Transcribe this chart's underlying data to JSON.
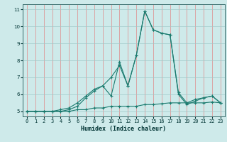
{
  "xlabel": "Humidex (Indice chaleur)",
  "x": [
    0,
    1,
    2,
    3,
    4,
    5,
    6,
    7,
    8,
    9,
    10,
    11,
    12,
    13,
    14,
    15,
    16,
    17,
    18,
    19,
    20,
    21,
    22,
    23
  ],
  "line1": [
    5.0,
    5.0,
    5.0,
    5.0,
    5.0,
    5.1,
    5.3,
    5.8,
    6.2,
    6.5,
    7.0,
    7.7,
    6.5,
    8.3,
    10.9,
    9.8,
    9.6,
    9.5,
    6.1,
    5.5,
    5.7,
    5.8,
    5.9,
    5.5
  ],
  "line2": [
    5.0,
    5.0,
    5.0,
    5.0,
    5.1,
    5.2,
    5.5,
    5.9,
    6.3,
    6.5,
    5.9,
    7.9,
    6.5,
    8.3,
    10.9,
    9.8,
    9.6,
    9.5,
    6.0,
    5.4,
    5.6,
    5.8,
    5.9,
    5.5
  ],
  "line3": [
    5.0,
    5.0,
    5.0,
    5.0,
    5.0,
    5.0,
    5.1,
    5.1,
    5.2,
    5.2,
    5.3,
    5.3,
    5.3,
    5.3,
    5.4,
    5.4,
    5.45,
    5.5,
    5.5,
    5.5,
    5.5,
    5.5,
    5.55,
    5.5
  ],
  "line_color": "#1a7a6e",
  "bg_color": "#ceeaea",
  "grid_major_color": "#f0b0b0",
  "grid_minor_color": "#b8d8d8",
  "ylim": [
    4.7,
    11.3
  ],
  "yticks": [
    5,
    6,
    7,
    8,
    9,
    10,
    11
  ],
  "xlim": [
    -0.5,
    23.5
  ]
}
